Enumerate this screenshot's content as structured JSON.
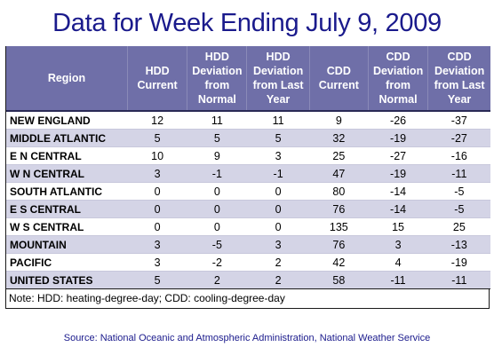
{
  "chart_data": {
    "type": "table",
    "title": "Data for Week Ending July 9, 2009",
    "columns": [
      "Region",
      "HDD Current",
      "HDD Deviation from Normal",
      "HDD Deviation from Last Year",
      "CDD Current",
      "CDD Deviation from Normal",
      "CDD Deviation from Last Year"
    ],
    "rows": [
      [
        "NEW ENGLAND",
        "12",
        "11",
        "11",
        "9",
        "-26",
        "-37"
      ],
      [
        "MIDDLE ATLANTIC",
        "5",
        "5",
        "5",
        "32",
        "-19",
        "-27"
      ],
      [
        "E N CENTRAL",
        "10",
        "9",
        "3",
        "25",
        "-27",
        "-16"
      ],
      [
        "W N CENTRAL",
        "3",
        "-1",
        "-1",
        "47",
        "-19",
        "-11"
      ],
      [
        "SOUTH ATLANTIC",
        "0",
        "0",
        "0",
        "80",
        "-14",
        "-5"
      ],
      [
        "E S CENTRAL",
        "0",
        "0",
        "0",
        "76",
        "-14",
        "-5"
      ],
      [
        "W S CENTRAL",
        "0",
        "0",
        "0",
        "135",
        "15",
        "25"
      ],
      [
        "MOUNTAIN",
        "3",
        "-5",
        "3",
        "76",
        "3",
        "-13"
      ],
      [
        "PACIFIC",
        "3",
        "-2",
        "2",
        "42",
        "4",
        "-19"
      ],
      [
        "UNITED STATES",
        "5",
        "2",
        "2",
        "58",
        "-11",
        "-11"
      ]
    ],
    "note": "Note: HDD: heating-degree-day; CDD: cooling-degree-day",
    "source": "Source:  National Oceanic and Atmospheric Administration, National Weather Service"
  },
  "colors": {
    "title": "#1a1a8c",
    "header_bg": "#6f6fa8",
    "stripe": "#d4d4e6"
  }
}
